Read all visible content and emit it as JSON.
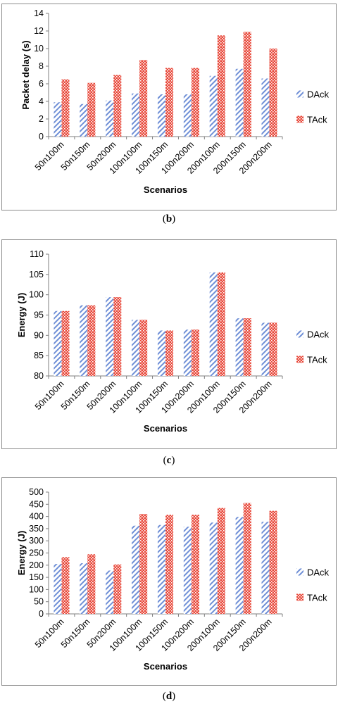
{
  "chart_data": [
    {
      "type": "bar",
      "panel": "b",
      "ylabel": "Packet delay (s)",
      "xlabel": "Scenarios",
      "ylim": [
        0,
        14
      ],
      "ytick_step": 2,
      "categories": [
        "50n100m",
        "50n150m",
        "50n200m",
        "100n100m",
        "100n150m",
        "100n200m",
        "200n100m",
        "200n150m",
        "200n200m"
      ],
      "series": [
        {
          "name": "DAck",
          "values": [
            3.9,
            3.7,
            4.1,
            4.9,
            4.8,
            4.8,
            6.9,
            7.7,
            6.6
          ]
        },
        {
          "name": "TAck",
          "values": [
            6.5,
            6.1,
            7.0,
            8.7,
            7.8,
            7.8,
            11.5,
            11.9,
            10.0
          ]
        }
      ],
      "legend": "right"
    },
    {
      "type": "bar",
      "panel": "c",
      "ylabel": "Energy (J)",
      "xlabel": "Scenarios",
      "ylim": [
        80,
        110
      ],
      "ytick_step": 5,
      "categories": [
        "50n100m",
        "50n150m",
        "50n200m",
        "100n100m",
        "100n150m",
        "100n200m",
        "200n100m",
        "200n150m",
        "200n200m"
      ],
      "series": [
        {
          "name": "DAck",
          "values": [
            96.0,
            97.4,
            99.4,
            93.8,
            91.2,
            91.4,
            105.5,
            94.2,
            93.1
          ]
        },
        {
          "name": "TAck",
          "values": [
            96.0,
            97.4,
            99.4,
            93.8,
            91.2,
            91.4,
            105.5,
            94.2,
            93.1
          ]
        }
      ],
      "legend": "right"
    },
    {
      "type": "bar",
      "panel": "d",
      "ylabel": "Energy (J)",
      "xlabel": "Scenarios",
      "ylim": [
        0,
        500
      ],
      "ytick_step": 50,
      "categories": [
        "50n100m",
        "50n150m",
        "50n200m",
        "100n100m",
        "100n150m",
        "100n200m",
        "200n100m",
        "200n150m",
        "200n200m"
      ],
      "series": [
        {
          "name": "DAck",
          "values": [
            205,
            208,
            178,
            362,
            365,
            358,
            375,
            398,
            378
          ]
        },
        {
          "name": "TAck",
          "values": [
            233,
            245,
            203,
            410,
            407,
            407,
            435,
            455,
            423
          ]
        }
      ],
      "legend": "right"
    }
  ],
  "captions": {
    "b": {
      "open": "(",
      "letter": "b",
      "close": ")"
    },
    "c": {
      "open": "(",
      "letter": "c",
      "close": ")"
    },
    "d": {
      "open": "(",
      "letter": "d",
      "close": ")"
    }
  },
  "colors": {
    "dack": "#6f8fd6",
    "tack": "#e8483a",
    "axis": "#7f7f7f"
  }
}
